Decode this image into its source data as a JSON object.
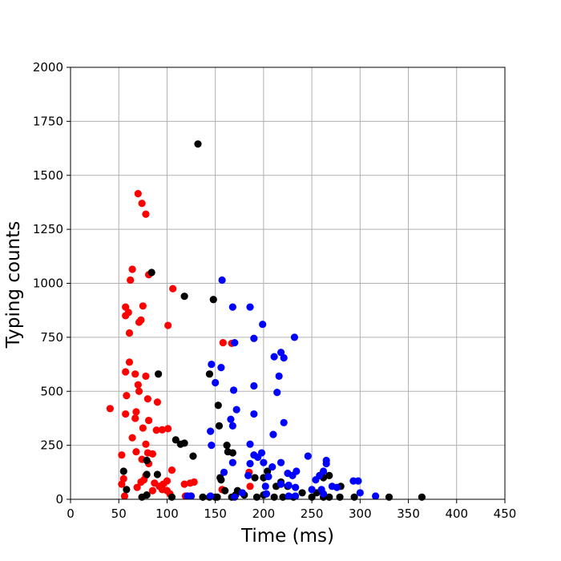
{
  "chart_data": {
    "type": "scatter",
    "title": "",
    "xlabel": "Time (ms)",
    "ylabel": "Typing counts",
    "xlim": [
      0,
      450
    ],
    "ylim": [
      0,
      2000
    ],
    "xticks": [
      0,
      50,
      100,
      150,
      200,
      250,
      300,
      350,
      400,
      450
    ],
    "yticks": [
      0,
      250,
      500,
      750,
      1000,
      1250,
      1500,
      1750,
      2000
    ],
    "xtick_labels": [
      "0",
      "50",
      "100",
      "150",
      "200",
      "250",
      "300",
      "350",
      "400",
      "450"
    ],
    "ytick_labels": [
      "0",
      "250",
      "500",
      "750",
      "1000",
      "1250",
      "1500",
      "1750",
      "2000"
    ],
    "grid": true,
    "legend": "none",
    "series": [
      {
        "color": "#ff0000",
        "points": [
          [
            70,
            1415
          ],
          [
            74,
            1370
          ],
          [
            78,
            1320
          ],
          [
            64,
            1065
          ],
          [
            81,
            1040
          ],
          [
            62,
            1015
          ],
          [
            106,
            975
          ],
          [
            57,
            890
          ],
          [
            75,
            895
          ],
          [
            57,
            850
          ],
          [
            60,
            865
          ],
          [
            101,
            805
          ],
          [
            71,
            820
          ],
          [
            73,
            830
          ],
          [
            61,
            770
          ],
          [
            158,
            725
          ],
          [
            167,
            722
          ],
          [
            61,
            635
          ],
          [
            57,
            590
          ],
          [
            67,
            580
          ],
          [
            78,
            570
          ],
          [
            70,
            530
          ],
          [
            58,
            480
          ],
          [
            71,
            500
          ],
          [
            80,
            465
          ],
          [
            90,
            450
          ],
          [
            41,
            420
          ],
          [
            57,
            395
          ],
          [
            68,
            405
          ],
          [
            67,
            375
          ],
          [
            81,
            365
          ],
          [
            75,
            330
          ],
          [
            89,
            320
          ],
          [
            95,
            322
          ],
          [
            101,
            327
          ],
          [
            64,
            285
          ],
          [
            78,
            255
          ],
          [
            68,
            220
          ],
          [
            80,
            215
          ],
          [
            85,
            210
          ],
          [
            53,
            205
          ],
          [
            74,
            185
          ],
          [
            81,
            165
          ],
          [
            78,
            110
          ],
          [
            87,
            75
          ],
          [
            92,
            60
          ],
          [
            96,
            70
          ],
          [
            53,
            70
          ],
          [
            55,
            95
          ],
          [
            73,
            80
          ],
          [
            76,
            90
          ],
          [
            69,
            55
          ],
          [
            85,
            40
          ],
          [
            95,
            45
          ],
          [
            100,
            40
          ],
          [
            103,
            25
          ],
          [
            105,
            135
          ],
          [
            100,
            85
          ],
          [
            118,
            70
          ],
          [
            124,
            75
          ],
          [
            128,
            80
          ],
          [
            124,
            15
          ],
          [
            56,
            15
          ],
          [
            157,
            45
          ],
          [
            119,
            15
          ],
          [
            185,
            125
          ],
          [
            186,
            60
          ]
        ]
      },
      {
        "color": "#000000",
        "points": [
          [
            132,
            1645
          ],
          [
            84,
            1050
          ],
          [
            118,
            940
          ],
          [
            148,
            925
          ],
          [
            91,
            580
          ],
          [
            144,
            580
          ],
          [
            153,
            435
          ],
          [
            154,
            340
          ],
          [
            109,
            275
          ],
          [
            114,
            255
          ],
          [
            118,
            260
          ],
          [
            162,
            250
          ],
          [
            79,
            180
          ],
          [
            127,
            200
          ],
          [
            163,
            220
          ],
          [
            168,
            215
          ],
          [
            90,
            115
          ],
          [
            55,
            130
          ],
          [
            79,
            115
          ],
          [
            155,
            100
          ],
          [
            156,
            90
          ],
          [
            58,
            45
          ],
          [
            160,
            40
          ],
          [
            173,
            40
          ],
          [
            191,
            100
          ],
          [
            200,
            100
          ],
          [
            204,
            130
          ],
          [
            213,
            60
          ],
          [
            218,
            80
          ],
          [
            225,
            60
          ],
          [
            240,
            30
          ],
          [
            255,
            30
          ],
          [
            262,
            100
          ],
          [
            268,
            110
          ],
          [
            280,
            60
          ],
          [
            74,
            10
          ],
          [
            79,
            20
          ],
          [
            105,
            10
          ],
          [
            137,
            10
          ],
          [
            144,
            10
          ],
          [
            150,
            10
          ],
          [
            152,
            10
          ],
          [
            167,
            10
          ],
          [
            171,
            20
          ],
          [
            180,
            20
          ],
          [
            193,
            10
          ],
          [
            200,
            20
          ],
          [
            211,
            10
          ],
          [
            220,
            10
          ],
          [
            231,
            10
          ],
          [
            250,
            10
          ],
          [
            262,
            10
          ],
          [
            268,
            10
          ],
          [
            279,
            10
          ],
          [
            294,
            10
          ],
          [
            330,
            10
          ],
          [
            364,
            10
          ]
        ]
      },
      {
        "color": "#0000ff",
        "points": [
          [
            157,
            1015
          ],
          [
            168,
            890
          ],
          [
            186,
            890
          ],
          [
            199,
            810
          ],
          [
            232,
            750
          ],
          [
            190,
            745
          ],
          [
            170,
            725
          ],
          [
            211,
            660
          ],
          [
            218,
            680
          ],
          [
            221,
            655
          ],
          [
            146,
            625
          ],
          [
            156,
            610
          ],
          [
            216,
            570
          ],
          [
            150,
            540
          ],
          [
            190,
            525
          ],
          [
            169,
            505
          ],
          [
            214,
            495
          ],
          [
            172,
            415
          ],
          [
            190,
            395
          ],
          [
            166,
            370
          ],
          [
            168,
            340
          ],
          [
            221,
            355
          ],
          [
            145,
            315
          ],
          [
            210,
            300
          ],
          [
            146,
            250
          ],
          [
            186,
            255
          ],
          [
            198,
            215
          ],
          [
            190,
            205
          ],
          [
            194,
            195
          ],
          [
            168,
            170
          ],
          [
            186,
            165
          ],
          [
            200,
            170
          ],
          [
            218,
            170
          ],
          [
            246,
            200
          ],
          [
            265,
            180
          ],
          [
            265,
            165
          ],
          [
            159,
            125
          ],
          [
            184,
            110
          ],
          [
            209,
            150
          ],
          [
            205,
            105
          ],
          [
            225,
            120
          ],
          [
            230,
            110
          ],
          [
            234,
            130
          ],
          [
            262,
            130
          ],
          [
            258,
            110
          ],
          [
            254,
            90
          ],
          [
            293,
            85
          ],
          [
            298,
            85
          ],
          [
            202,
            60
          ],
          [
            218,
            70
          ],
          [
            226,
            65
          ],
          [
            233,
            55
          ],
          [
            250,
            45
          ],
          [
            260,
            45
          ],
          [
            271,
            60
          ],
          [
            276,
            55
          ],
          [
            300,
            30
          ],
          [
            316,
            15
          ],
          [
            178,
            30
          ],
          [
            203,
            25
          ],
          [
            226,
            15
          ],
          [
            233,
            15
          ],
          [
            262,
            25
          ],
          [
            121,
            15
          ],
          [
            125,
            15
          ],
          [
            145,
            15
          ],
          [
            170,
            10
          ]
        ]
      }
    ]
  }
}
